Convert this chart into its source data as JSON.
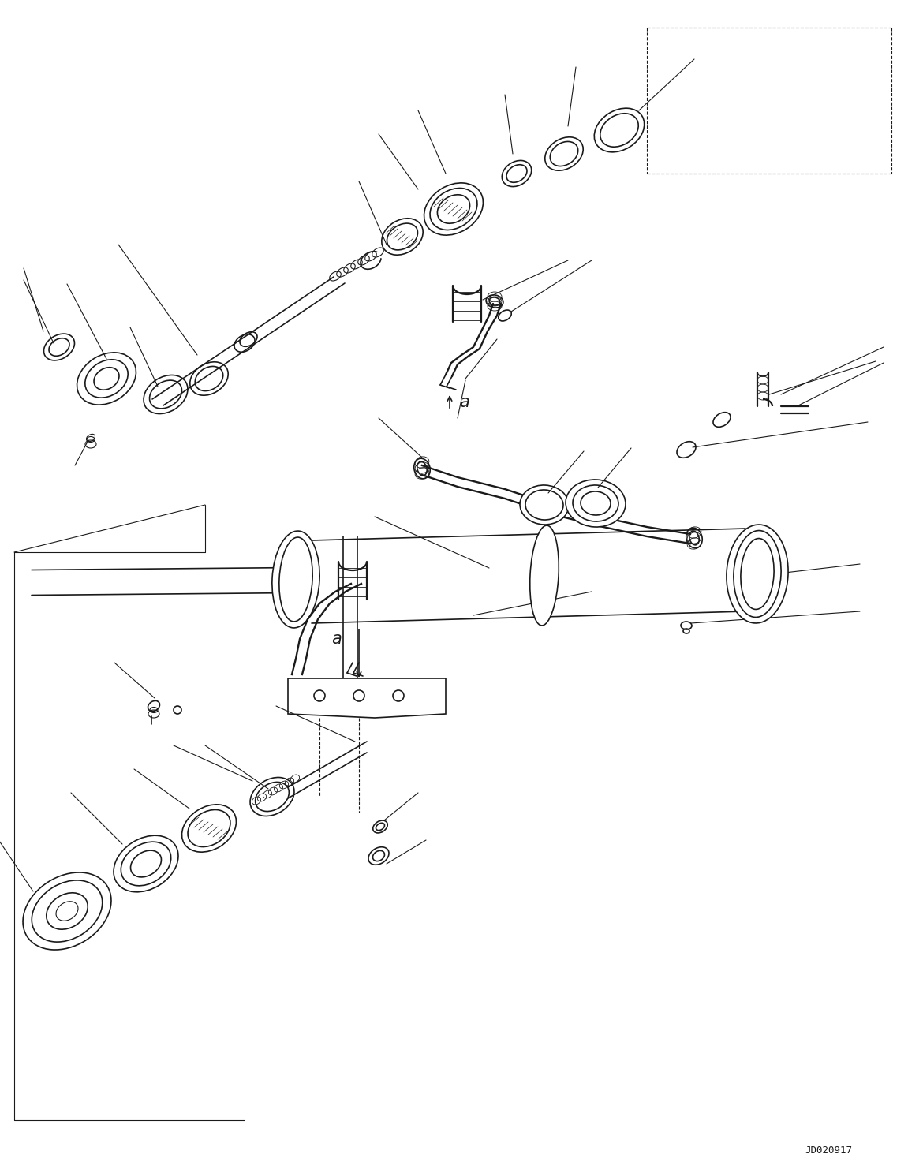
{
  "bg_color": "#ffffff",
  "line_color": "#1a1a1a",
  "fig_width": 11.51,
  "fig_height": 14.87,
  "dpi": 100,
  "watermark": "JD020917",
  "label_a": "a"
}
